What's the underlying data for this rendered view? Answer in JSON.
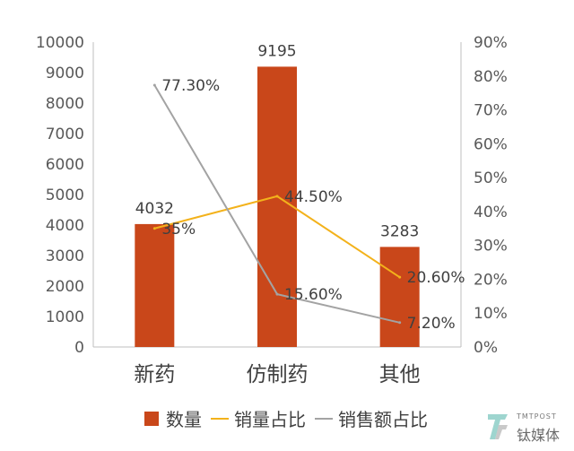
{
  "chart_data": {
    "type": "bar",
    "categories": [
      "新药",
      "仿制药",
      "其他"
    ],
    "series": [
      {
        "name": "数量",
        "type": "bar",
        "axis": "left",
        "values": [
          4032,
          9195,
          3283
        ],
        "labels": [
          "4032",
          "9195",
          "3283"
        ],
        "color": "#c9471a"
      },
      {
        "name": "销量占比",
        "type": "line",
        "axis": "right",
        "values": [
          35,
          44.5,
          20.6
        ],
        "labels": [
          "35%",
          "44.50%",
          "20.60%"
        ],
        "color": "#f3b21b"
      },
      {
        "name": "销售额占比",
        "type": "line",
        "axis": "right",
        "values": [
          77.3,
          15.6,
          7.2
        ],
        "labels": [
          "77.30%",
          "15.60%",
          "7.20%"
        ],
        "color": "#a3a3a3"
      }
    ],
    "y_left": {
      "ylim": [
        0,
        10000
      ],
      "ticks": [
        "0",
        "1000",
        "2000",
        "3000",
        "4000",
        "5000",
        "6000",
        "7000",
        "8000",
        "9000",
        "10000"
      ]
    },
    "y_right": {
      "ylim": [
        0,
        90
      ],
      "ticks": [
        "0%",
        "10%",
        "20%",
        "30%",
        "40%",
        "50%",
        "60%",
        "70%",
        "80%",
        "90%"
      ]
    },
    "grid": false,
    "legend": "bottom"
  },
  "watermark": {
    "small": "TMTPOST",
    "main": "钛媒体"
  }
}
